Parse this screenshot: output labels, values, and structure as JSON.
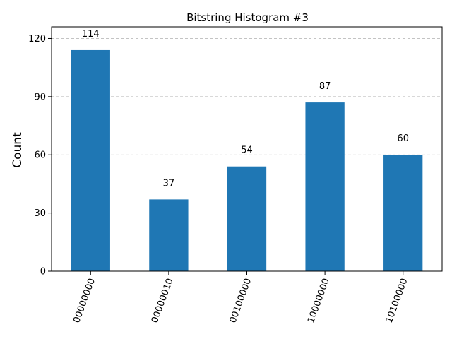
{
  "chart_data": {
    "type": "bar",
    "title": "Bitstring Histogram #3",
    "xlabel": "",
    "ylabel": "Count",
    "categories": [
      "00000000",
      "00000010",
      "00100000",
      "10000000",
      "10100000"
    ],
    "values": [
      114,
      37,
      54,
      87,
      60
    ],
    "data_labels": [
      "114",
      "37",
      "54",
      "87",
      "60"
    ],
    "yticks": [
      0,
      30,
      60,
      90,
      120
    ],
    "ytick_labels": [
      "0",
      "30",
      "60",
      "90",
      "120"
    ],
    "ylim": [
      0,
      126
    ],
    "grid": "y-dashed",
    "bar_color": "#1f77b4",
    "xtick_rotation_deg": 70
  }
}
